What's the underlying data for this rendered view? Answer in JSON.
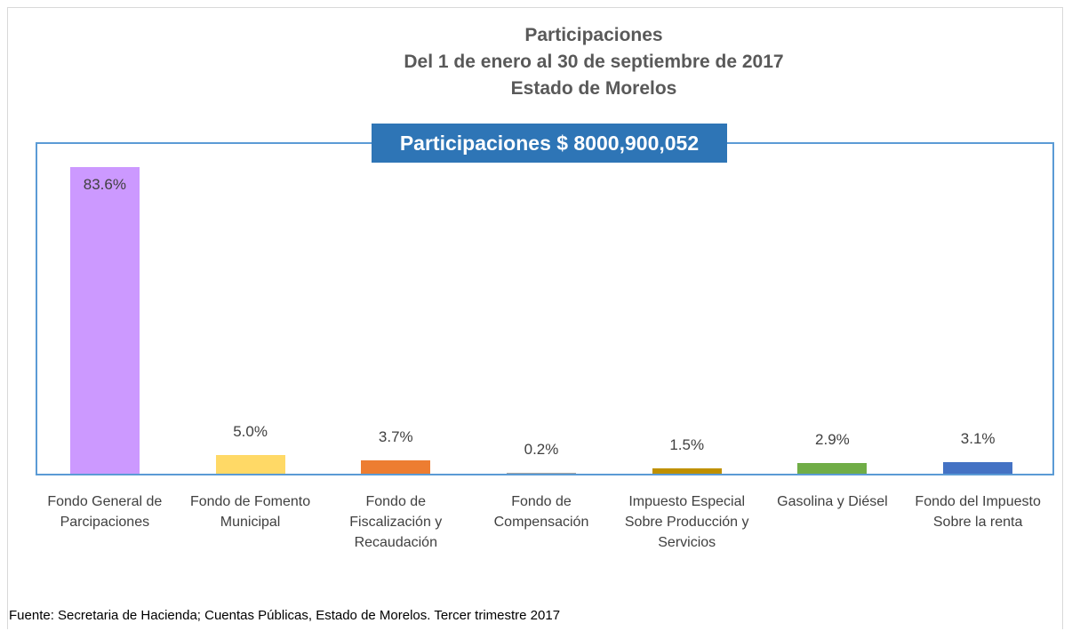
{
  "chart_data": {
    "type": "bar",
    "title": "Participaciones",
    "subtitle": "Del 1 de enero al 30 de septiembre de 2017",
    "subtitle2": "Estado de Morelos",
    "annotation": "Participaciones $ 8000,900,052",
    "categories": [
      "Fondo General de Parcipaciones",
      "Fondo de Fomento Municipal",
      "Fondo de Fiscalización y Recaudación",
      "Fondo de Compensación",
      "Impuesto Especial Sobre Producción y Servicios",
      "Gasolina y Diésel",
      "Fondo del Impuesto Sobre la renta"
    ],
    "values": [
      83.6,
      5.0,
      3.7,
      0.2,
      1.5,
      2.9,
      3.1
    ],
    "value_labels": [
      "83.6%",
      "5.0%",
      "3.7%",
      "0.2%",
      "1.5%",
      "2.9%",
      "3.1%"
    ],
    "colors": [
      "#cc99ff",
      "#ffd966",
      "#ed7d31",
      "#a5a5a5",
      "#bf9000",
      "#70ad47",
      "#4472c4"
    ],
    "source": "Fuente: Secretaria de Hacienda; Cuentas Públicas, Estado de Morelos. Tercer trimestre 2017"
  }
}
